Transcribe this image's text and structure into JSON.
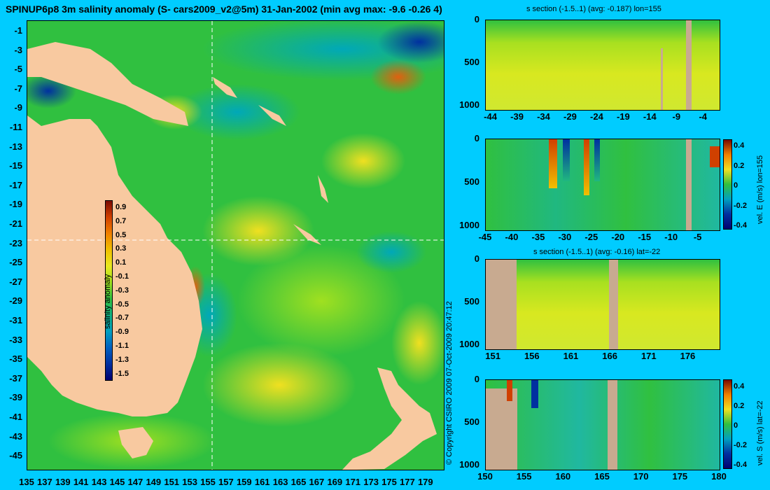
{
  "main_title": "SPINUP6p8 3m salinity anomaly (S- cars2009_v2@5m) 31-Jan-2002 (min avg max: -9.6 -0.26 4)",
  "copyright": "© Copyright CSIRO 2009  07-Oct-2009 20:47:12",
  "colors": {
    "background": "#00ccff",
    "land": "#f8c9a0",
    "section_land": "#c8aa90",
    "ocean_mid": "#20c040",
    "ocean_low": "#00a0c0",
    "ocean_high": "#e0e020"
  },
  "chart_data": [
    {
      "type": "heatmap",
      "name": "map",
      "title": "SPINUP6p8 3m salinity anomaly (S- cars2009_v2@5m) 31-Jan-2002 (min avg max: -9.6 -0.26 4)",
      "x_ticks": [
        "135",
        "137",
        "139",
        "141",
        "143",
        "145",
        "147",
        "149",
        "151",
        "153",
        "155",
        "157",
        "159",
        "161",
        "163",
        "165",
        "167",
        "169",
        "171",
        "173",
        "175",
        "177",
        "179"
      ],
      "y_ticks": [
        "-1",
        "-3",
        "-5",
        "-7",
        "-9",
        "-11",
        "-13",
        "-15",
        "-17",
        "-19",
        "-21",
        "-23",
        "-25",
        "-27",
        "-29",
        "-31",
        "-33",
        "-35",
        "-37",
        "-39",
        "-41",
        "-43",
        "-45"
      ],
      "xlim": [
        135,
        180
      ],
      "ylim": [
        -45,
        0
      ],
      "section_lines": {
        "lon": 155,
        "lat": -22
      },
      "colorbar": {
        "label": "salinity anomaly",
        "range": [
          -1.5,
          1.0
        ],
        "ticks": [
          "0.9",
          "0.7",
          "0.5",
          "0.3",
          "0.1",
          "-0.1",
          "-0.3",
          "-0.5",
          "-0.7",
          "-0.9",
          "-1.1",
          "-1.3",
          "-1.5"
        ]
      }
    },
    {
      "type": "heatmap",
      "name": "s-section-lon155",
      "title": "s section (-1.5..1) (avg: -0.187) lon=155",
      "x_ticks": [
        "-44",
        "-39",
        "-34",
        "-29",
        "-24",
        "-19",
        "-14",
        "-9",
        "-4"
      ],
      "y_ticks": [
        "0",
        "500",
        "1000"
      ],
      "xlim": [
        -45,
        -1
      ],
      "ylim": [
        1050,
        0
      ]
    },
    {
      "type": "heatmap",
      "name": "vel-e-section-lon155",
      "title": "",
      "x_ticks": [
        "-45",
        "-40",
        "-35",
        "-30",
        "-25",
        "-20",
        "-15",
        "-10",
        "-5"
      ],
      "y_ticks": [
        "0",
        "500",
        "1000"
      ],
      "xlim": [
        -45,
        -1
      ],
      "ylim": [
        1050,
        0
      ],
      "colorbar": {
        "label": "vel. E (m/s) lon=155",
        "range": [
          -0.4,
          0.45
        ],
        "ticks": [
          "0.4",
          "0.2",
          "0",
          "-0.2",
          "-0.4"
        ]
      }
    },
    {
      "type": "heatmap",
      "name": "s-section-lat-22",
      "title": "s section (-1.5..1) (avg: -0.16) lat=-22",
      "x_ticks": [
        "151",
        "156",
        "161",
        "166",
        "171",
        "176"
      ],
      "y_ticks": [
        "0",
        "500",
        "1000"
      ],
      "xlim": [
        150,
        180
      ],
      "ylim": [
        1050,
        0
      ]
    },
    {
      "type": "heatmap",
      "name": "vel-s-section-lat-22",
      "title": "",
      "x_ticks": [
        "150",
        "155",
        "160",
        "165",
        "170",
        "175",
        "180"
      ],
      "y_ticks": [
        "0",
        "500",
        "1000"
      ],
      "xlim": [
        150,
        180
      ],
      "ylim": [
        1050,
        0
      ],
      "colorbar": {
        "label": "vel. S (m/s) lat=-22",
        "range": [
          -0.4,
          0.45
        ],
        "ticks": [
          "0.4",
          "0.2",
          "0",
          "-0.2",
          "-0.4"
        ]
      }
    }
  ]
}
